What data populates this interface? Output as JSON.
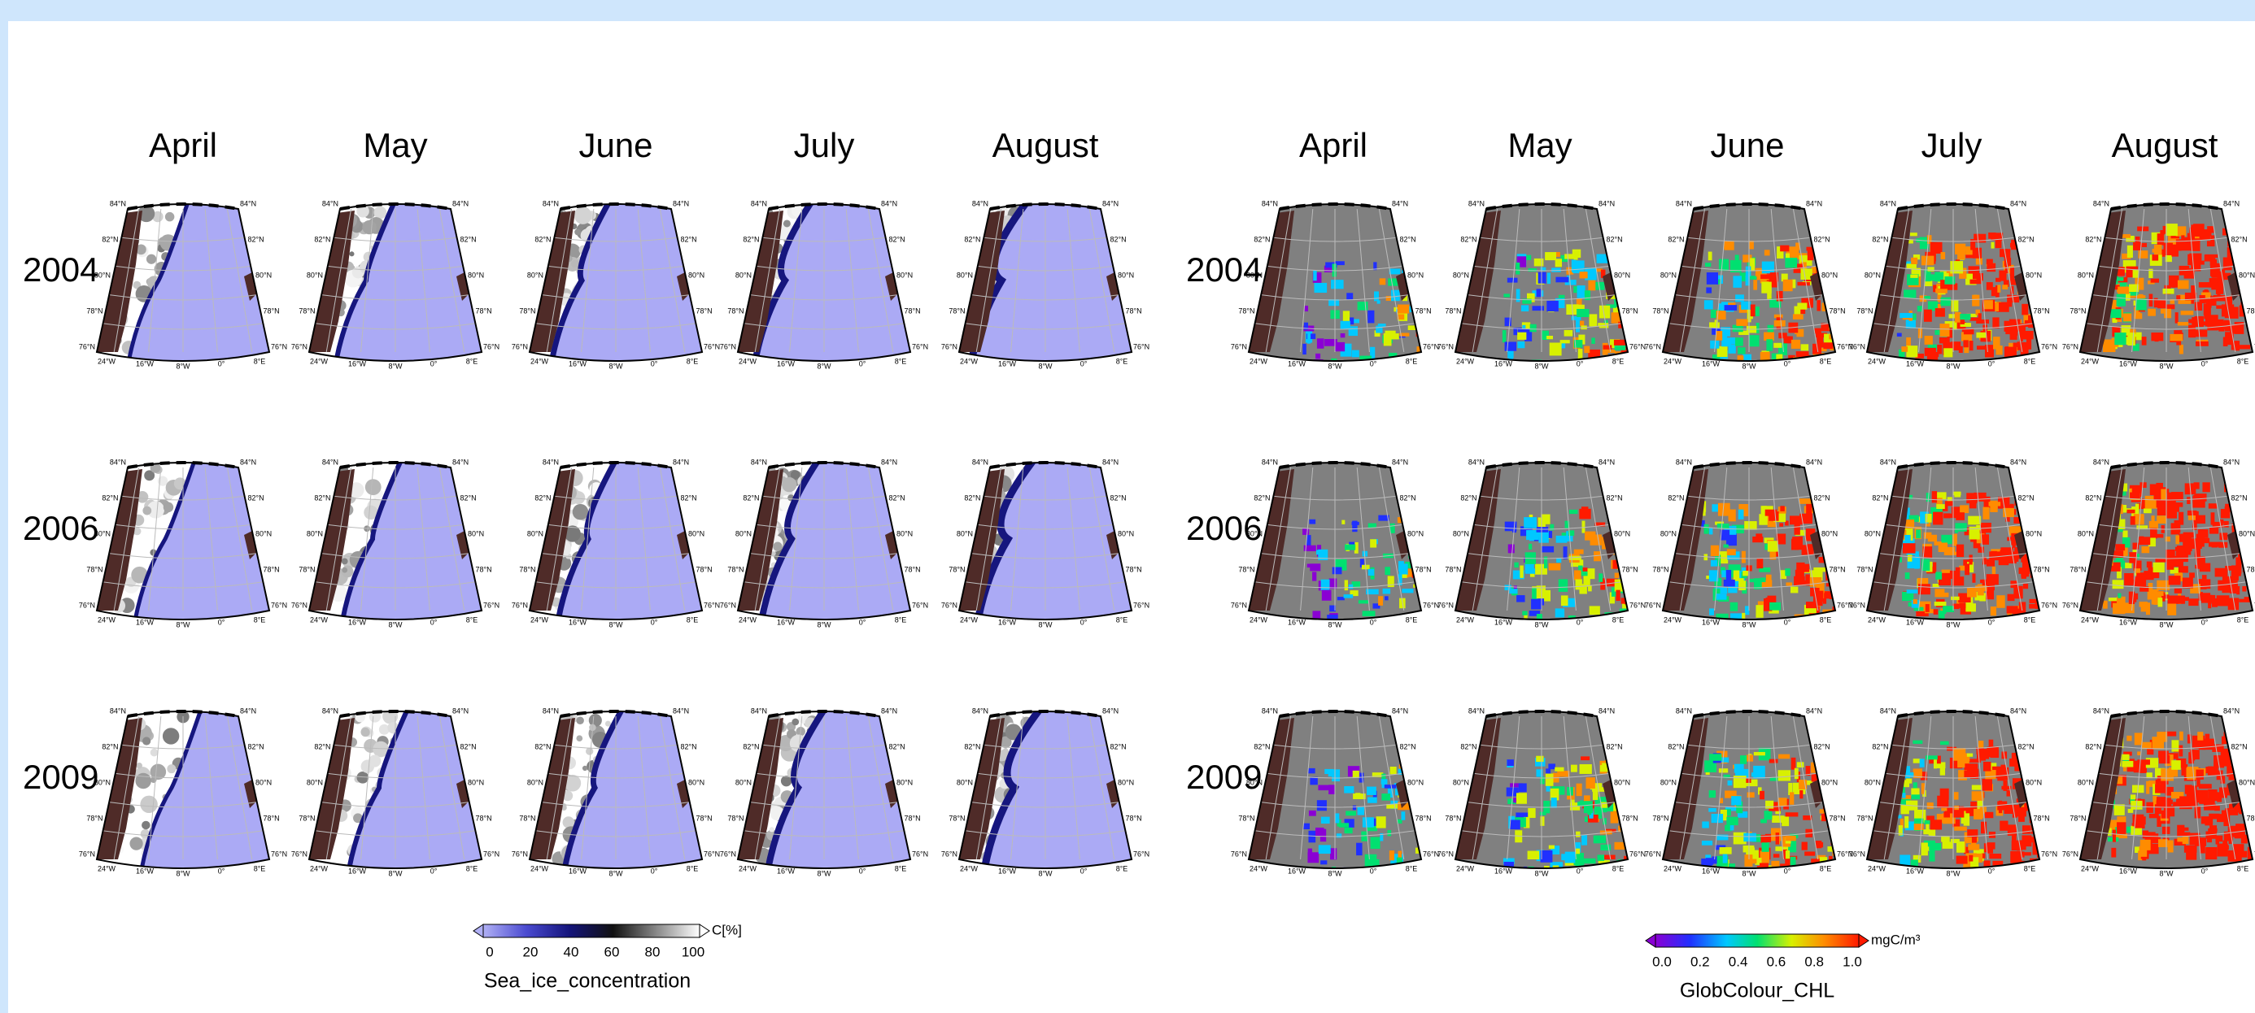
{
  "sea_ice": {
    "months": [
      "April",
      "May",
      "June",
      "July",
      "August"
    ],
    "years": [
      "2004",
      "2006",
      "2009"
    ],
    "colorbar": {
      "ticks": [
        "0",
        "20",
        "40",
        "60",
        "80",
        "100"
      ],
      "unit": "C[%]",
      "label": "Sea_ice_concentration"
    }
  },
  "chlorophyll": {
    "months": [
      "April",
      "May",
      "June",
      "July",
      "August"
    ],
    "years": [
      "2004",
      "2006",
      "2009"
    ],
    "colorbar": {
      "ticks": [
        "0.0",
        "0.2",
        "0.4",
        "0.6",
        "0.8",
        "1.0"
      ],
      "unit": "mgC/m³",
      "label": "GlobColour_CHL"
    }
  },
  "map_labels": {
    "lat": [
      "76°N",
      "78°N",
      "80°N",
      "82°N",
      "84°N"
    ],
    "lon": [
      "24°W",
      "16°W",
      "8°W",
      "0°",
      "8°E"
    ]
  }
}
